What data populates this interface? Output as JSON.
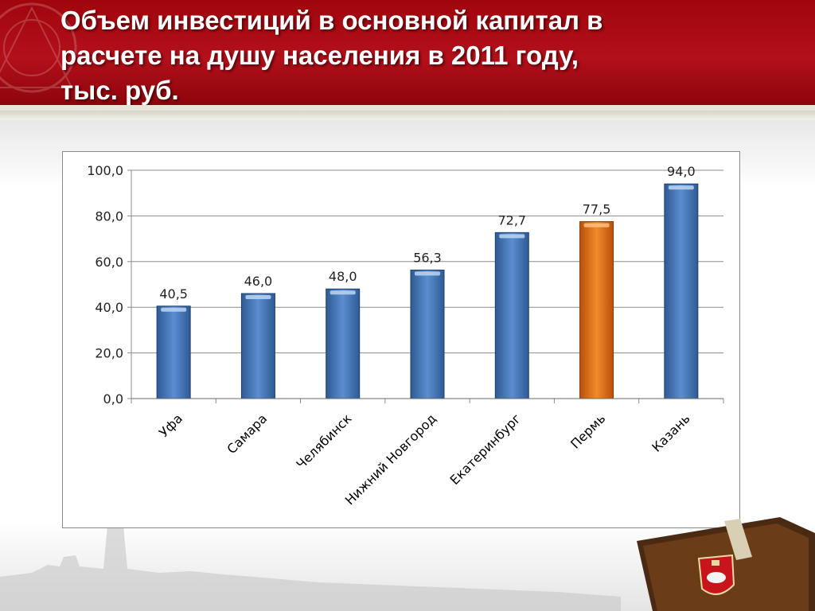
{
  "slide": {
    "title": "Объем инвестиций в основной капитал в\nрасчете на душу населения в 2011 году,\nтыс. руб."
  },
  "colors": {
    "header_red": "#a0060c",
    "bar_default": "#4a78b8",
    "bar_highlight": "#e06a10"
  },
  "chart_data": {
    "type": "bar",
    "categories": [
      "Уфа",
      "Самара",
      "Челябинск",
      "Нижний Новгород",
      "Екатеринбург",
      "Пермь",
      "Казань"
    ],
    "values": [
      40.5,
      46.0,
      48.0,
      56.3,
      72.7,
      77.5,
      94.0
    ],
    "data_labels": [
      "40,5",
      "46,0",
      "48,0",
      "56,3",
      "72,7",
      "77,5",
      "94,0"
    ],
    "highlight_category": "Пермь",
    "ylim": [
      0,
      100
    ],
    "yticks": [
      "0,0",
      "20,0",
      "40,0",
      "60,0",
      "80,0",
      "100,0"
    ],
    "grid": true,
    "legend": "none"
  },
  "decor": {
    "emblem_icon": "perm-coat-of-arms-icon"
  }
}
